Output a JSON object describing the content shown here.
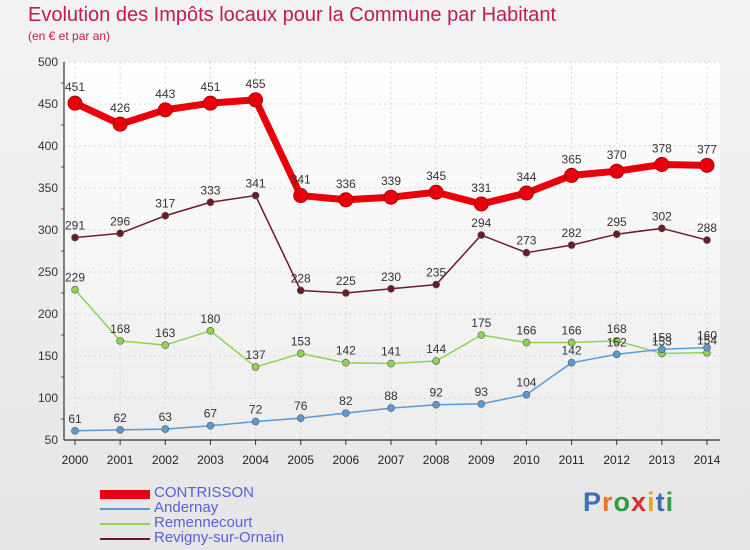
{
  "header": {
    "title": "Evolution des Impôts locaux pour la Commune par Habitant",
    "subtitle": "(en € et par an)"
  },
  "brand": {
    "name": "Proxiti",
    "letters": [
      {
        "ch": "P",
        "color": "#3b6fb6"
      },
      {
        "ch": "r",
        "color": "#e8742a"
      },
      {
        "ch": "o",
        "color": "#2e9e3e"
      },
      {
        "ch": "x",
        "color": "#d72e2e"
      },
      {
        "ch": "i",
        "color": "#e4a81e"
      },
      {
        "ch": "t",
        "color": "#3b6fb6"
      },
      {
        "ch": "i",
        "color": "#2e9e3e"
      }
    ]
  },
  "chart_data": {
    "type": "line",
    "x": [
      2000,
      2001,
      2002,
      2003,
      2004,
      2005,
      2006,
      2007,
      2008,
      2009,
      2010,
      2011,
      2012,
      2013,
      2014
    ],
    "ylim": [
      50,
      500
    ],
    "yticks": [
      50,
      100,
      150,
      200,
      250,
      300,
      350,
      400,
      450,
      500
    ],
    "grid": true,
    "legend_position": "bottom-left",
    "series": [
      {
        "name": "CONTRISSON",
        "color": "#e8000b",
        "values": [
          451,
          426,
          443,
          451,
          455,
          341,
          336,
          339,
          345,
          331,
          344,
          365,
          370,
          378,
          377
        ]
      },
      {
        "name": "Andernay",
        "color": "#5a9bd5",
        "values": [
          61,
          62,
          63,
          67,
          72,
          76,
          82,
          88,
          92,
          93,
          104,
          142,
          152,
          158,
          160
        ]
      },
      {
        "name": "Remennecourt",
        "color": "#8ed451",
        "values": [
          229,
          168,
          163,
          180,
          137,
          153,
          142,
          141,
          144,
          175,
          166,
          166,
          168,
          153,
          154
        ]
      },
      {
        "name": "Revigny-sur-Ornain",
        "color": "#6b1a26",
        "values": [
          291,
          296,
          317,
          333,
          341,
          228,
          225,
          230,
          235,
          294,
          273,
          282,
          295,
          302,
          288
        ]
      }
    ]
  }
}
